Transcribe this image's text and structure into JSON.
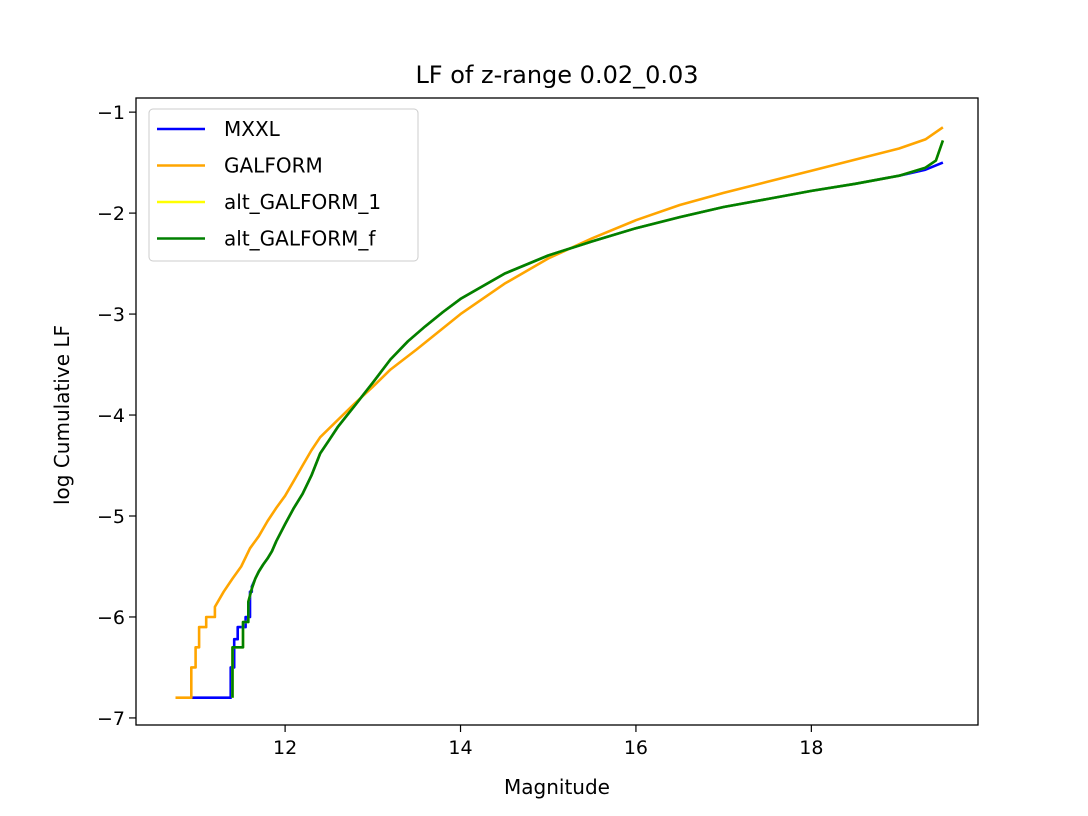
{
  "chart_data": {
    "type": "line",
    "title": "LF of z-range 0.02_0.03",
    "xlabel": "Magnitude",
    "ylabel": "log Cumulative LF",
    "xlim": [
      10.3,
      19.9
    ],
    "ylim": [
      -7.07,
      -0.86
    ],
    "xticks": [
      12,
      14,
      16,
      18
    ],
    "yticks": [
      -7,
      -6,
      -5,
      -4,
      -3,
      -2,
      -1
    ],
    "xtick_labels": [
      "12",
      "14",
      "16",
      "18"
    ],
    "ytick_labels": [
      "−7",
      "−6",
      "−5",
      "−4",
      "−3",
      "−2",
      "−1"
    ],
    "grid": false,
    "legend_position": "top-left",
    "series": [
      {
        "name": "MXXL",
        "color": "#0000ff",
        "step": true,
        "x": [
          10.92,
          11.38,
          11.38,
          11.42,
          11.42,
          11.46,
          11.46,
          11.55,
          11.55,
          11.6,
          11.6,
          11.62,
          11.62,
          11.66,
          11.7,
          11.75,
          11.8,
          11.85,
          11.9,
          12.0,
          12.1,
          12.2,
          12.3,
          12.4,
          12.5,
          12.6,
          12.8,
          13.0,
          13.2,
          13.4,
          13.6,
          13.8,
          14.0,
          14.5,
          15.0,
          15.5,
          16.0,
          16.5,
          17.0,
          17.5,
          18.0,
          18.5,
          19.0,
          19.3,
          19.5
        ],
        "y": [
          -6.8,
          -6.8,
          -6.5,
          -6.5,
          -6.22,
          -6.22,
          -6.1,
          -6.1,
          -6.0,
          -6.0,
          -5.75,
          -5.75,
          -5.7,
          -5.62,
          -5.55,
          -5.48,
          -5.42,
          -5.35,
          -5.25,
          -5.08,
          -4.92,
          -4.78,
          -4.6,
          -4.38,
          -4.25,
          -4.12,
          -3.9,
          -3.68,
          -3.45,
          -3.27,
          -3.12,
          -2.98,
          -2.85,
          -2.6,
          -2.42,
          -2.28,
          -2.15,
          -2.04,
          -1.94,
          -1.86,
          -1.78,
          -1.71,
          -1.63,
          -1.57,
          -1.5
        ]
      },
      {
        "name": "GALFORM",
        "color": "#ffa500",
        "step": true,
        "x": [
          10.75,
          10.93,
          10.93,
          10.98,
          10.98,
          11.02,
          11.02,
          11.1,
          11.1,
          11.2,
          11.2,
          11.3,
          11.4,
          11.5,
          11.6,
          11.7,
          11.8,
          11.9,
          12.0,
          12.1,
          12.2,
          12.3,
          12.4,
          12.6,
          12.8,
          13.0,
          13.2,
          13.5,
          14.0,
          14.5,
          15.0,
          15.5,
          16.0,
          16.5,
          17.0,
          17.5,
          18.0,
          18.5,
          19.0,
          19.3,
          19.5
        ],
        "y": [
          -6.8,
          -6.8,
          -6.5,
          -6.5,
          -6.3,
          -6.3,
          -6.1,
          -6.1,
          -6.0,
          -6.0,
          -5.9,
          -5.75,
          -5.62,
          -5.5,
          -5.32,
          -5.2,
          -5.05,
          -4.92,
          -4.8,
          -4.65,
          -4.5,
          -4.35,
          -4.22,
          -4.05,
          -3.88,
          -3.72,
          -3.55,
          -3.35,
          -3.0,
          -2.7,
          -2.45,
          -2.25,
          -2.07,
          -1.92,
          -1.8,
          -1.69,
          -1.58,
          -1.47,
          -1.36,
          -1.27,
          -1.15
        ]
      },
      {
        "name": "alt_GALFORM_1",
        "color": "#ffff00",
        "step": true,
        "x": [
          11.4,
          11.4,
          11.45,
          11.45,
          11.52,
          11.52,
          11.58,
          11.58,
          11.62,
          11.66,
          11.7,
          11.75,
          11.8,
          11.85,
          11.9,
          12.0,
          12.1,
          12.2,
          12.3,
          12.4,
          12.5,
          12.6,
          12.8,
          13.0,
          13.2,
          13.4,
          13.6,
          13.8,
          14.0,
          14.5,
          15.0,
          15.5,
          16.0,
          16.5,
          17.0,
          17.5,
          18.0,
          18.5,
          19.0,
          19.3,
          19.42,
          19.5
        ],
        "y": [
          -6.8,
          -6.3,
          -6.3,
          -6.3,
          -6.3,
          -6.05,
          -6.05,
          -5.85,
          -5.72,
          -5.62,
          -5.55,
          -5.48,
          -5.42,
          -5.35,
          -5.25,
          -5.08,
          -4.92,
          -4.78,
          -4.6,
          -4.38,
          -4.25,
          -4.12,
          -3.9,
          -3.68,
          -3.45,
          -3.27,
          -3.12,
          -2.98,
          -2.85,
          -2.6,
          -2.42,
          -2.28,
          -2.15,
          -2.04,
          -1.94,
          -1.86,
          -1.78,
          -1.71,
          -1.63,
          -1.55,
          -1.48,
          -1.28
        ]
      },
      {
        "name": "alt_GALFORM_f",
        "color": "#008000",
        "step": true,
        "x": [
          11.4,
          11.4,
          11.45,
          11.45,
          11.52,
          11.52,
          11.58,
          11.58,
          11.62,
          11.66,
          11.7,
          11.75,
          11.8,
          11.85,
          11.9,
          12.0,
          12.1,
          12.2,
          12.3,
          12.4,
          12.5,
          12.6,
          12.8,
          13.0,
          13.2,
          13.4,
          13.6,
          13.8,
          14.0,
          14.5,
          15.0,
          15.5,
          16.0,
          16.5,
          17.0,
          17.5,
          18.0,
          18.5,
          19.0,
          19.3,
          19.42,
          19.5
        ],
        "y": [
          -6.8,
          -6.3,
          -6.3,
          -6.3,
          -6.3,
          -6.05,
          -6.05,
          -5.85,
          -5.72,
          -5.62,
          -5.55,
          -5.48,
          -5.42,
          -5.35,
          -5.25,
          -5.08,
          -4.92,
          -4.78,
          -4.6,
          -4.38,
          -4.25,
          -4.12,
          -3.9,
          -3.68,
          -3.45,
          -3.27,
          -3.12,
          -2.98,
          -2.85,
          -2.6,
          -2.42,
          -2.28,
          -2.15,
          -2.04,
          -1.94,
          -1.86,
          -1.78,
          -1.71,
          -1.63,
          -1.55,
          -1.48,
          -1.28
        ]
      }
    ]
  }
}
